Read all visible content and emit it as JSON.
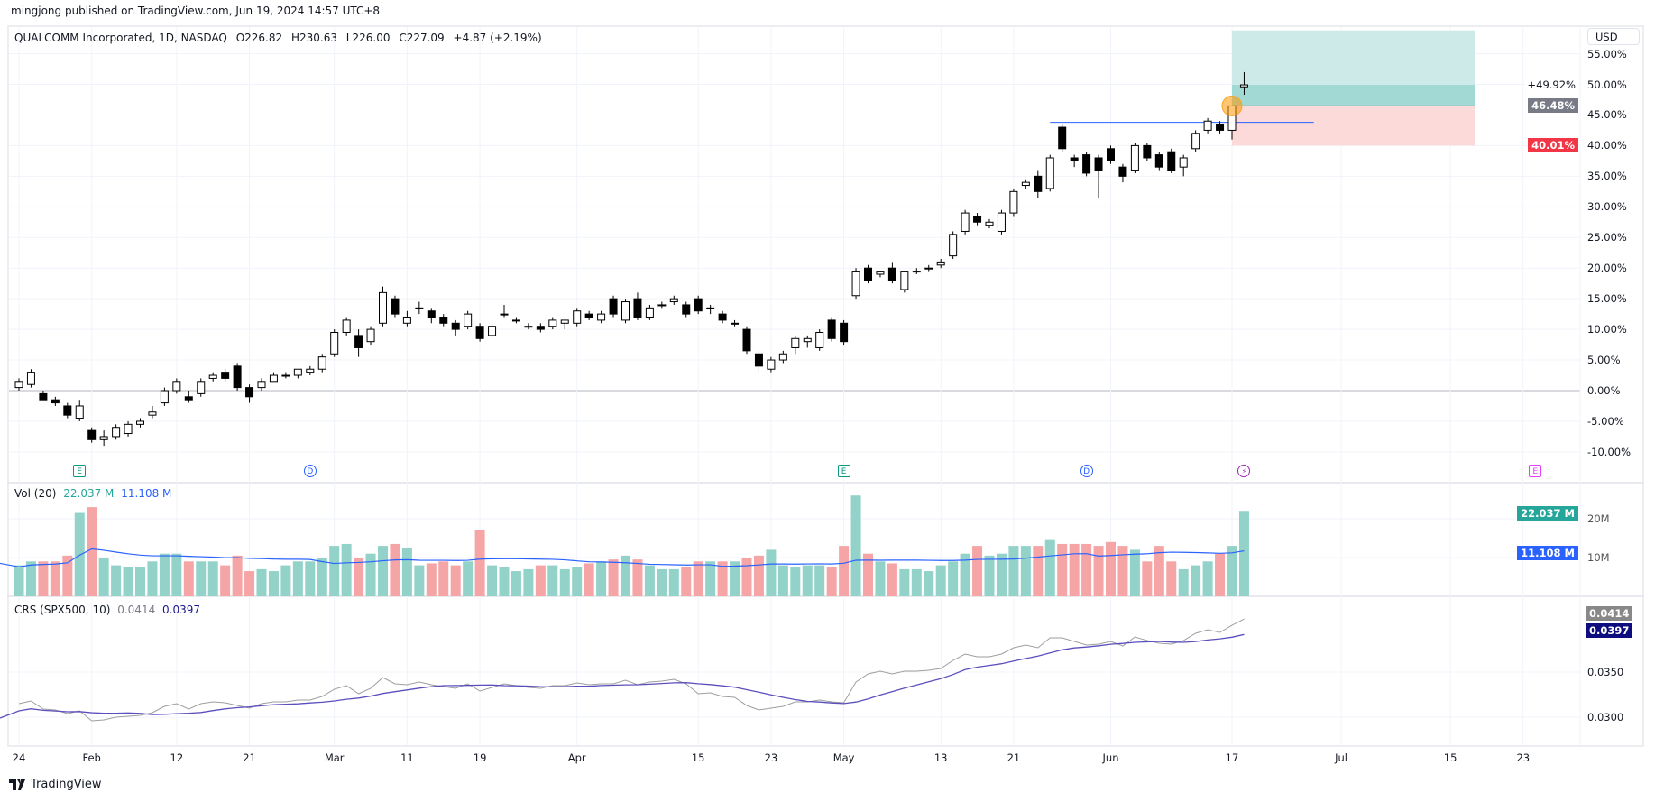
{
  "publish_line": "mingjong published on TradingView.com, Jun 19, 2024 14:57 UTC+8",
  "legend": {
    "symbol": "QUALCOMM Incorporated, 1D, NASDAQ",
    "open": "O226.82",
    "high": "H230.63",
    "low": "L226.00",
    "close": "C227.09",
    "change": "+4.87 (+2.19%)"
  },
  "currency_button": "USD",
  "price_axis": {
    "ticks": [
      -10,
      -5,
      0,
      5,
      10,
      15,
      20,
      25,
      30,
      35,
      40,
      45,
      50,
      55
    ],
    "tick_labels": [
      "-10.00%",
      "-5.00%",
      "0.00%",
      "5.00%",
      "10.00%",
      "15.00%",
      "20.00%",
      "25.00%",
      "30.00%",
      "35.00%",
      "40.00%",
      "45.00%",
      "50.00%",
      "55.00%"
    ],
    "current_label": "+49.92%",
    "current_value": 49.92,
    "entry_badge": "46.48%",
    "stop_badge": "40.01%"
  },
  "position_tool": {
    "entry": 46.48,
    "stop": 40.01,
    "target": 58.8,
    "start_index": 100,
    "end_index": 120
  },
  "resistance_line": {
    "value": 43.8,
    "start_index": 85,
    "end_index": 106
  },
  "volume_pane": {
    "title": "Vol (20)",
    "value": "22.037 M",
    "ma_value": "11.108 M",
    "badge_value": "22.037 M",
    "badge_ma": "11.108 M",
    "ticks": [
      "20M",
      "10M"
    ]
  },
  "crs_pane": {
    "title": "CRS (SPX500, 10)",
    "value": "0.0414",
    "ma_value": "0.0397",
    "ticks": [
      "0.0350",
      "0.0300"
    ]
  },
  "x_axis": [
    {
      "label": "24",
      "index": 0
    },
    {
      "label": "Feb",
      "index": 6
    },
    {
      "label": "12",
      "index": 13
    },
    {
      "label": "21",
      "index": 19
    },
    {
      "label": "Mar",
      "index": 26
    },
    {
      "label": "11",
      "index": 32
    },
    {
      "label": "19",
      "index": 38
    },
    {
      "label": "Apr",
      "index": 46
    },
    {
      "label": "15",
      "index": 56
    },
    {
      "label": "23",
      "index": 62
    },
    {
      "label": "May",
      "index": 68
    },
    {
      "label": "13",
      "index": 76
    },
    {
      "label": "21",
      "index": 82
    },
    {
      "label": "Jun",
      "index": 90
    },
    {
      "label": "17",
      "index": 100
    },
    {
      "label": "Jul",
      "index": 109
    },
    {
      "label": "15",
      "index": 118
    },
    {
      "label": "23",
      "index": 124
    }
  ],
  "events": [
    {
      "type": "E",
      "index": 5,
      "color": "#089981"
    },
    {
      "type": "D",
      "index": 24,
      "color": "#2962ff"
    },
    {
      "type": "E",
      "index": 68,
      "color": "#089981"
    },
    {
      "type": "D",
      "index": 88,
      "color": "#2962ff"
    },
    {
      "type": "flash-icon",
      "index": 101,
      "color": "#9c27b0"
    },
    {
      "type": "E",
      "index": 125,
      "color": "#e040fb"
    }
  ],
  "footer_brand": "TradingView",
  "colors": {
    "up_vol": "#92d2c9",
    "down_vol": "#f5a5a5",
    "vol_ma": "#2962ff",
    "crs": "#9e9e9e",
    "crs_ma": "#5b4fbd",
    "target_zone": "#cdeae8",
    "profit_zone": "#a3d9d4",
    "stop_zone": "#fcdad9"
  },
  "chart_data": {
    "type": "candlestick",
    "unit": "percent change",
    "ohlc": [
      [
        0.5,
        2,
        0,
        1.5
      ],
      [
        1,
        3.5,
        0.5,
        3
      ],
      [
        -0.5,
        0,
        -1.5,
        -1.5
      ],
      [
        -1.5,
        -1,
        -2.5,
        -2
      ],
      [
        -2.5,
        -2,
        -4.5,
        -4
      ],
      [
        -4.5,
        -1.5,
        -5,
        -2.5
      ],
      [
        -6.5,
        -6,
        -8.5,
        -8
      ],
      [
        -8,
        -6.5,
        -9,
        -7.5
      ],
      [
        -7.5,
        -5.5,
        -8,
        -6
      ],
      [
        -7,
        -5,
        -7.5,
        -5.5
      ],
      [
        -5.5,
        -4.5,
        -6,
        -5
      ],
      [
        -4,
        -2.5,
        -4.5,
        -3.5
      ],
      [
        -2,
        0.5,
        -2.5,
        0
      ],
      [
        0,
        2,
        -0.5,
        1.5
      ],
      [
        -1,
        0,
        -2,
        -1.5
      ],
      [
        -0.5,
        2,
        -1,
        1.5
      ],
      [
        2,
        3,
        1.5,
        2.5
      ],
      [
        3,
        3.5,
        1.5,
        2
      ],
      [
        4,
        4.5,
        0,
        0.5
      ],
      [
        0.5,
        1,
        -2,
        -1
      ],
      [
        0.5,
        2,
        0,
        1.5
      ],
      [
        1.5,
        3,
        1.5,
        2.5
      ],
      [
        2.5,
        3,
        2,
        2.5
      ],
      [
        2.5,
        3.5,
        2,
        3.5
      ],
      [
        3,
        4,
        2.5,
        3.5
      ],
      [
        3.5,
        6,
        3,
        5.5
      ],
      [
        6,
        10,
        5.5,
        9.5
      ],
      [
        9.5,
        12,
        9,
        11.5
      ],
      [
        9,
        10,
        5.5,
        7
      ],
      [
        8,
        10.5,
        7.5,
        10
      ],
      [
        11,
        17,
        10.5,
        16
      ],
      [
        15,
        15.5,
        12,
        12.5
      ],
      [
        11,
        13,
        10.5,
        12
      ],
      [
        13.5,
        14.5,
        12.5,
        13.5
      ],
      [
        13,
        13.5,
        11,
        12
      ],
      [
        12,
        12.5,
        10.5,
        11
      ],
      [
        11,
        11.5,
        9,
        10
      ],
      [
        10.5,
        13,
        10,
        12.5
      ],
      [
        10.5,
        11,
        8,
        8.5
      ],
      [
        9,
        11,
        8.5,
        10.5
      ],
      [
        12.5,
        14,
        12,
        12.5
      ],
      [
        11.5,
        12,
        11,
        11.5
      ],
      [
        10.5,
        11,
        10,
        10.5
      ],
      [
        10.5,
        11,
        9.5,
        10
      ],
      [
        10.5,
        12,
        10,
        11.5
      ],
      [
        11,
        11.5,
        10,
        11.5
      ],
      [
        11,
        13.5,
        10.5,
        13
      ],
      [
        12.5,
        13,
        11.5,
        12
      ],
      [
        11.5,
        13,
        11,
        12.5
      ],
      [
        15,
        15.5,
        12,
        12.5
      ],
      [
        11.5,
        15,
        11,
        14.5
      ],
      [
        15,
        16,
        11.5,
        12
      ],
      [
        12,
        14,
        11.5,
        13.5
      ],
      [
        14,
        14.5,
        13.5,
        14
      ],
      [
        14.5,
        15.5,
        14,
        15
      ],
      [
        14,
        14.5,
        12,
        12.5
      ],
      [
        15,
        15.5,
        12.5,
        13
      ],
      [
        13.5,
        14,
        12.5,
        13.5
      ],
      [
        12.5,
        13,
        11,
        11.5
      ],
      [
        11,
        11.5,
        10.5,
        11
      ],
      [
        10,
        10.5,
        6,
        6.5
      ],
      [
        6,
        6.5,
        3,
        4
      ],
      [
        3.5,
        5.5,
        3,
        5
      ],
      [
        5,
        6.5,
        4.5,
        6
      ],
      [
        7,
        9,
        6,
        8.5
      ],
      [
        8,
        9,
        7,
        8.5
      ],
      [
        7,
        10,
        6.5,
        9.5
      ],
      [
        11.5,
        12,
        8,
        8.5
      ],
      [
        11,
        11.5,
        7.5,
        8
      ],
      [
        15.5,
        20,
        15,
        19.5
      ],
      [
        20,
        20.5,
        17.5,
        18
      ],
      [
        19,
        19.5,
        18.5,
        19.5
      ],
      [
        20,
        21,
        17.5,
        18
      ],
      [
        16.5,
        19.5,
        16,
        19.5
      ],
      [
        19.5,
        20,
        19,
        19.5
      ],
      [
        20,
        20.5,
        19.5,
        20
      ],
      [
        20.5,
        21.5,
        20,
        21
      ],
      [
        22,
        26,
        21.5,
        25.5
      ],
      [
        26,
        29.5,
        25.5,
        29
      ],
      [
        28.5,
        29,
        27,
        27.5
      ],
      [
        27,
        28,
        26.5,
        27.5
      ],
      [
        26,
        29.5,
        25.5,
        29
      ],
      [
        29,
        33,
        28.5,
        32.5
      ],
      [
        33.5,
        34.5,
        33,
        34
      ],
      [
        35,
        36,
        31.5,
        32.5
      ],
      [
        33,
        38.5,
        32.5,
        38
      ],
      [
        43,
        43.5,
        39,
        39.5
      ],
      [
        38,
        38.5,
        36.5,
        37.5
      ],
      [
        38.5,
        39,
        35,
        35.5
      ],
      [
        38,
        38.5,
        31.5,
        36
      ],
      [
        39.5,
        40,
        37,
        37.5
      ],
      [
        36.5,
        37,
        34,
        35
      ],
      [
        36,
        40.5,
        35.5,
        40
      ],
      [
        40,
        40.5,
        37.5,
        38
      ],
      [
        38.5,
        39,
        36,
        36.5
      ],
      [
        39,
        39.5,
        35.5,
        36
      ],
      [
        36.5,
        38.5,
        35,
        38
      ],
      [
        39.5,
        42.5,
        39,
        42
      ],
      [
        42.5,
        44.5,
        42,
        44
      ],
      [
        43.5,
        44,
        42,
        42.5
      ],
      [
        42.5,
        46.5,
        41,
        46.48
      ],
      [
        49.6,
        52,
        48.3,
        49.92
      ]
    ],
    "volume_millions": [
      8,
      9,
      9,
      9,
      10.5,
      21.5,
      23,
      10,
      8,
      7.5,
      7.5,
      9,
      11,
      11,
      9,
      9,
      9,
      8,
      10.5,
      6.5,
      7,
      6.5,
      8,
      9,
      9,
      10,
      13,
      13.5,
      10,
      11,
      13,
      13.5,
      12.5,
      8,
      8.5,
      9,
      8,
      9,
      17,
      8,
      7.5,
      6.5,
      7,
      8,
      8,
      7,
      7.5,
      8.5,
      9,
      9.5,
      10.5,
      9.5,
      8,
      7,
      7,
      7.5,
      9,
      9,
      9,
      9,
      10,
      10.5,
      12,
      8,
      7.5,
      8,
      8,
      7.5,
      13,
      26,
      11,
      9,
      8.5,
      7,
      7,
      6.5,
      8,
      9,
      11,
      13,
      10.5,
      11,
      13,
      13,
      13,
      14.5,
      13.5,
      13.5,
      13.5,
      13,
      14,
      13,
      12,
      9,
      13,
      9,
      7,
      8,
      9,
      11,
      13,
      22.037
    ],
    "volume_ma_period": 20,
    "crs_ma_period": 10,
    "price_range": [
      -12,
      60
    ],
    "crs_range": [
      0.0275,
      0.043
    ]
  }
}
